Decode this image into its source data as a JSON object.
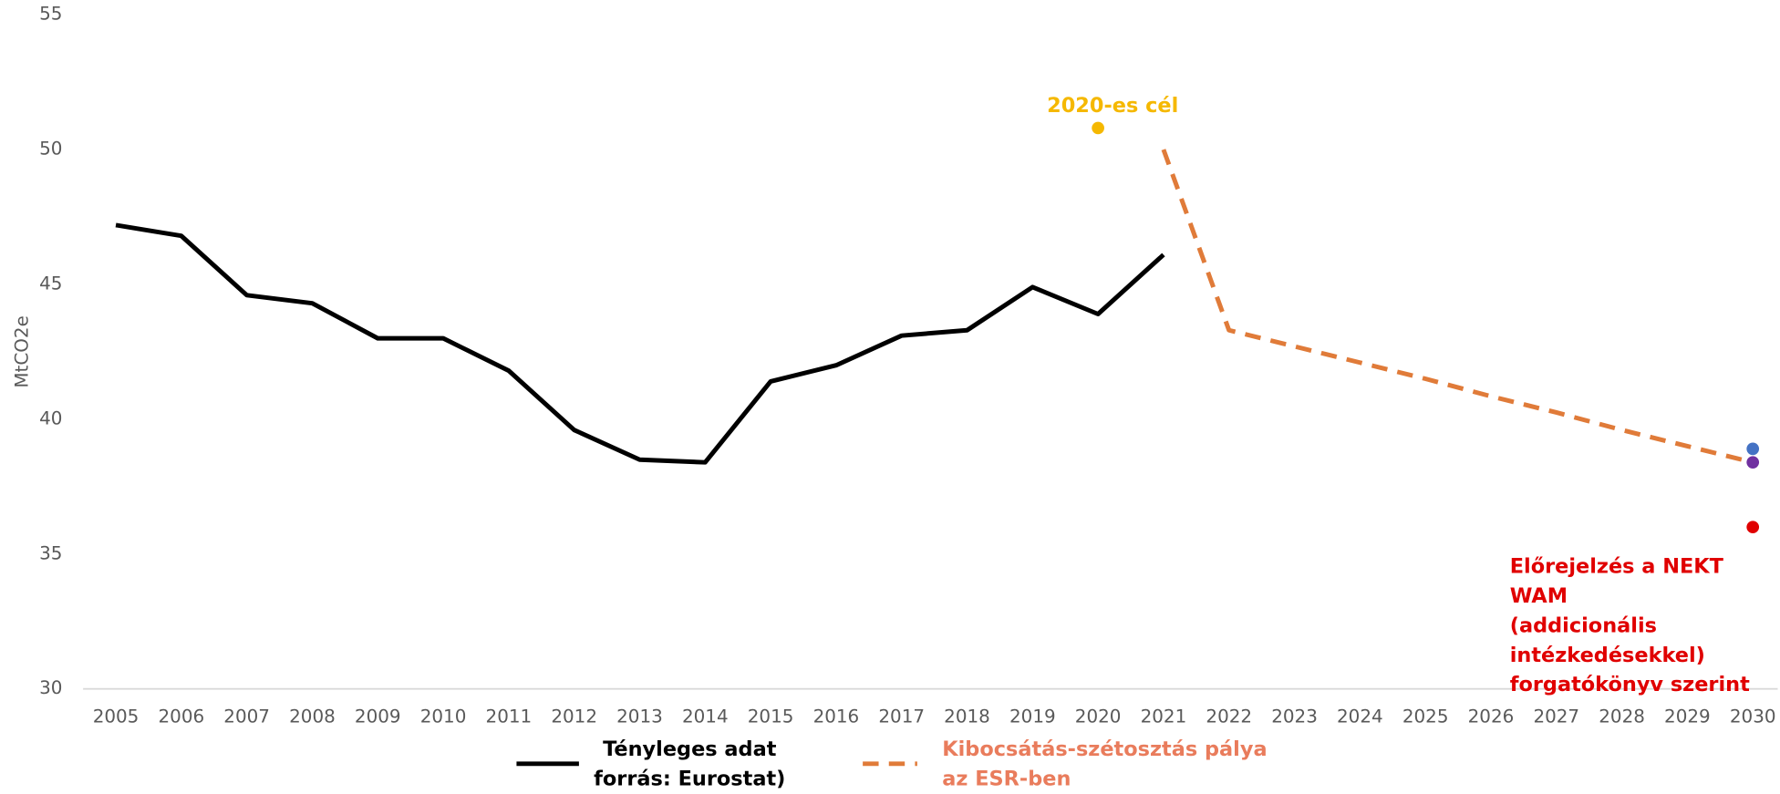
{
  "chart_data": {
    "type": "line",
    "y_label": "MtCO2e",
    "x": [
      2005,
      2006,
      2007,
      2008,
      2009,
      2010,
      2011,
      2012,
      2013,
      2014,
      2015,
      2016,
      2017,
      2018,
      2019,
      2020,
      2021,
      2022,
      2023,
      2024,
      2025,
      2026,
      2027,
      2028,
      2029,
      2030
    ],
    "xlim": [
      2004.5,
      2030.5
    ],
    "xticks": [
      2005,
      2006,
      2007,
      2008,
      2009,
      2010,
      2011,
      2012,
      2013,
      2014,
      2015,
      2016,
      2017,
      2018,
      2019,
      2020,
      2021,
      2022,
      2023,
      2024,
      2025,
      2026,
      2027,
      2028,
      2029,
      2030
    ],
    "ylim": [
      30,
      55
    ],
    "yticks": [
      30,
      35,
      40,
      45,
      50,
      55
    ],
    "series": [
      {
        "name": "Tényleges adat\nforrás: Eurostat)",
        "color": "#000000",
        "dashed": false,
        "values": [
          47.2,
          46.8,
          44.6,
          44.3,
          43.0,
          43.0,
          41.8,
          39.6,
          38.5,
          38.4,
          41.4,
          42.0,
          43.1,
          43.3,
          44.9,
          43.9,
          46.1,
          null,
          null,
          null,
          null,
          null,
          null,
          null,
          null,
          null
        ]
      },
      {
        "name": "Kibocsátás-szétosztás pálya\n az ESR-ben",
        "color": "#e07b39",
        "dashed": true,
        "label_color": "#e97c5c",
        "values": [
          null,
          null,
          null,
          null,
          null,
          null,
          null,
          null,
          null,
          null,
          null,
          null,
          null,
          null,
          null,
          null,
          50.0,
          43.3,
          42.7,
          42.1,
          41.5,
          40.85,
          40.25,
          39.6,
          39.0,
          38.4
        ]
      }
    ],
    "points": [
      {
        "x": 2020,
        "value": 50.8,
        "color": "#f5b800",
        "label": "2020-es cél"
      },
      {
        "x": 2030,
        "value": 38.9,
        "color": "#4472c4"
      },
      {
        "x": 2030,
        "value": 38.4,
        "color": "#7030a0"
      },
      {
        "x": 2030,
        "value": 36.0,
        "color": "#e00000",
        "label": "Előrejelzés a NEKT WAM\n(addicionális\nintézkedésekkel)\nforgatókönyv szerint"
      }
    ]
  }
}
